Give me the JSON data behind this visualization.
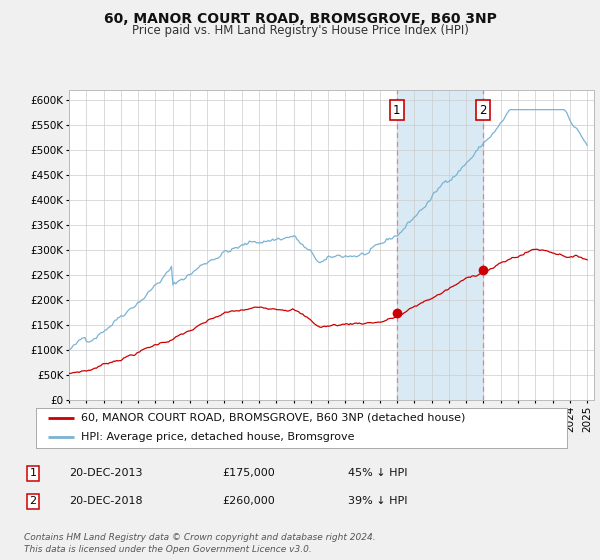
{
  "title": "60, MANOR COURT ROAD, BROMSGROVE, B60 3NP",
  "subtitle": "Price paid vs. HM Land Registry's House Price Index (HPI)",
  "legend_line1": "60, MANOR COURT ROAD, BROMSGROVE, B60 3NP (detached house)",
  "legend_line2": "HPI: Average price, detached house, Bromsgrove",
  "footnote1": "Contains HM Land Registry data © Crown copyright and database right 2024.",
  "footnote2": "This data is licensed under the Open Government Licence v3.0.",
  "sale1_date": "20-DEC-2013",
  "sale1_price": "£175,000",
  "sale1_hpi": "45% ↓ HPI",
  "sale1_x": 2013.97,
  "sale1_y": 175000,
  "sale2_date": "20-DEC-2018",
  "sale2_price": "£260,000",
  "sale2_hpi": "39% ↓ HPI",
  "sale2_x": 2018.97,
  "sale2_y": 260000,
  "vline1_x": 2013.97,
  "vline2_x": 2018.97,
  "ylim": [
    0,
    620000
  ],
  "xlim_left": 1995.0,
  "xlim_right": 2025.4,
  "yticks": [
    0,
    50000,
    100000,
    150000,
    200000,
    250000,
    300000,
    350000,
    400000,
    450000,
    500000,
    550000,
    600000
  ],
  "ylabels": [
    "£0",
    "£50K",
    "£100K",
    "£150K",
    "£200K",
    "£250K",
    "£300K",
    "£350K",
    "£400K",
    "£450K",
    "£500K",
    "£550K",
    "£600K"
  ],
  "hpi_color": "#7ab3d4",
  "price_color": "#cc0000",
  "shade_color": "#daeaf5",
  "vline_color": "#e88080",
  "background_color": "#f0f0f0",
  "plot_bg_color": "#ffffff",
  "grid_color": "#cccccc",
  "box_edge_color": "#cc0000",
  "title_fontsize": 10,
  "subtitle_fontsize": 8.5,
  "tick_fontsize": 7.5,
  "legend_fontsize": 8,
  "table_fontsize": 8,
  "footnote_fontsize": 6.5
}
